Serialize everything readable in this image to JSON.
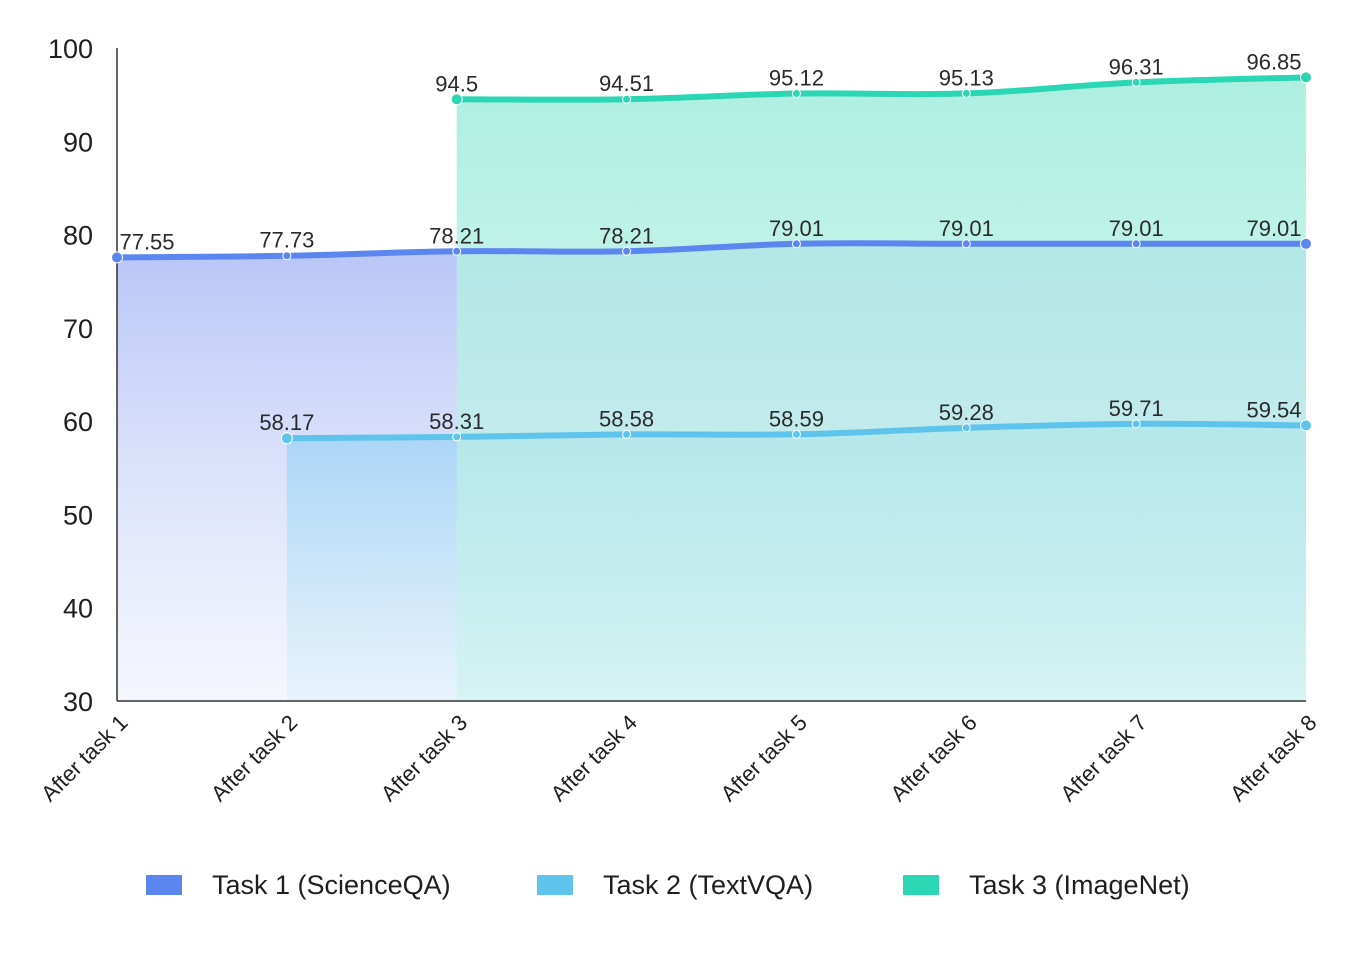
{
  "chart_data": {
    "type": "area",
    "categories": [
      "After task 1",
      "After task 2",
      "After task 3",
      "After task 4",
      "After task 5",
      "After task 6",
      "After task 7",
      "After task 8"
    ],
    "ylim": [
      30,
      100
    ],
    "yticks": [
      30,
      40,
      50,
      60,
      70,
      80,
      90,
      100
    ],
    "grid": false,
    "legend_position": "bottom",
    "series": [
      {
        "name": "Task 1 (ScienceQA)",
        "color": "#5b86f0",
        "values": [
          77.55,
          77.73,
          78.21,
          78.21,
          79.01,
          79.01,
          79.01,
          79.01
        ],
        "labels": [
          "77.55",
          "77.73",
          "78.21",
          "78.21",
          "79.01",
          "79.01",
          "79.01",
          "79.01"
        ]
      },
      {
        "name": "Task 2 (TextVQA)",
        "color": "#5ec4ec",
        "values": [
          null,
          58.17,
          58.31,
          58.58,
          58.59,
          59.28,
          59.71,
          59.54
        ],
        "labels": [
          "",
          "58.17",
          "58.31",
          "58.58",
          "58.59",
          "59.28",
          "59.71",
          "59.54"
        ]
      },
      {
        "name": "Task 3 (ImageNet)",
        "color": "#2bd6b4",
        "values": [
          null,
          null,
          94.5,
          94.51,
          95.12,
          95.13,
          96.31,
          96.85
        ],
        "labels": [
          "",
          "",
          "94.5",
          "94.51",
          "95.12",
          "95.13",
          "96.31",
          "96.85"
        ]
      }
    ]
  }
}
